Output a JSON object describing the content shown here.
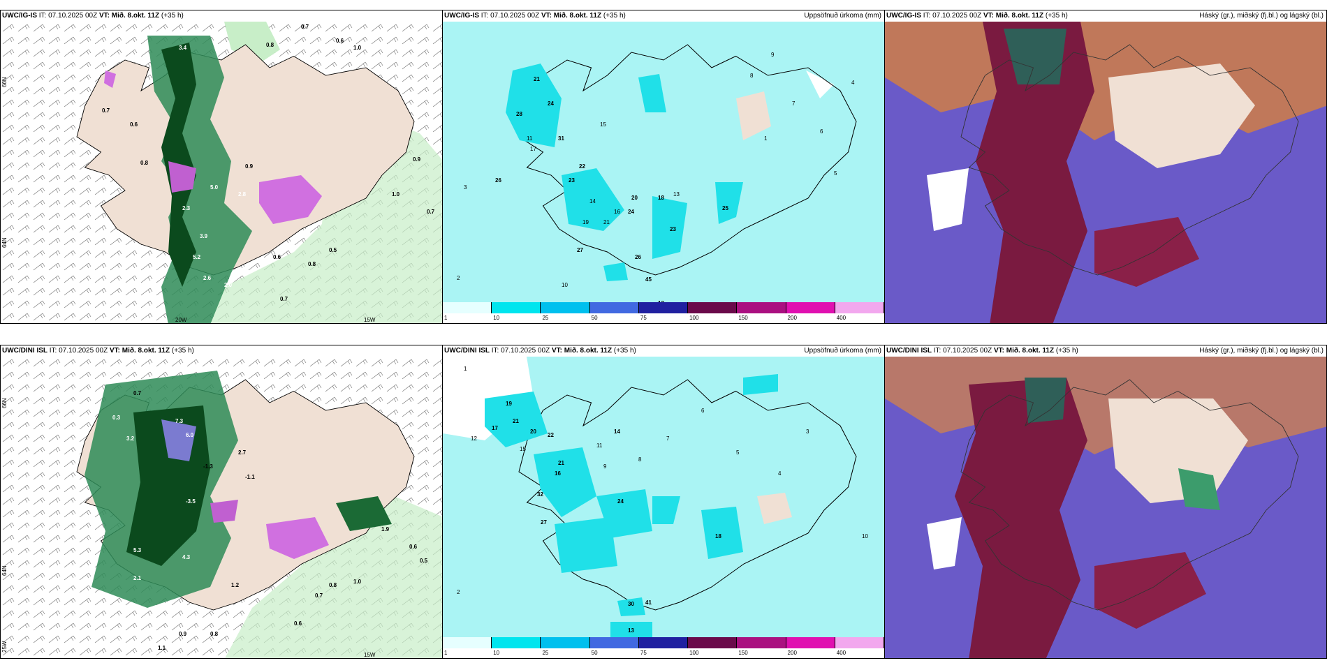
{
  "panels": {
    "p1": {
      "model": "UWC/IG-IS",
      "it": "IT: 07.10.2025 00Z",
      "vt": "VT: Mið. 8.okt. 11Z",
      "lead": "(+35 h)",
      "right": ""
    },
    "p2": {
      "model": "UWC/IG-IS",
      "it": "IT: 07.10.2025 00Z",
      "vt": "VT: Mið. 8.okt. 11Z",
      "lead": "(+35 h)",
      "right": "Uppsöfnuð úrkoma (mm)"
    },
    "p3": {
      "model": "UWC/IG-IS",
      "it": "IT: 07.10.2025 00Z",
      "vt": "VT: Mið. 8.okt. 11Z",
      "lead": "(+35 h)",
      "right": "Háský (gr.), miðský (fj.bl.) og lágský (bl.)"
    },
    "p4": {
      "model": "UWC/DINI ISL",
      "it": "IT: 07.10.2025 00Z",
      "vt": "VT: Mið. 8.okt. 11Z",
      "lead": "(+35 h)",
      "right": ""
    },
    "p5": {
      "model": "UWC/DINI ISL",
      "it": "IT: 07.10.2025 00Z",
      "vt": "VT: Mið. 8.okt. 11Z",
      "lead": "(+35 h)",
      "right": "Uppsöfnuð úrkoma (mm)"
    },
    "p6": {
      "model": "UWC/DINI ISL",
      "it": "IT: 07.10.2025 00Z",
      "vt": "VT: Mið. 8.okt. 11Z",
      "lead": "(+35 h)",
      "right": "Háský (gr.), miðský (fj.bl.) og lágský (bl.)"
    }
  },
  "grid_labels": {
    "lat66": "66N",
    "lat64": "64N",
    "lon20": "20W",
    "lon15": "15W",
    "lon25": "25W"
  },
  "colorbar": {
    "ticks": [
      "1",
      "10",
      "25",
      "50",
      "75",
      "100",
      "150",
      "200",
      "400"
    ],
    "colors": [
      "#e6ffff",
      "#00e5ee",
      "#00c0ee",
      "#4169e1",
      "#2020a0",
      "#6a0a4a",
      "#aa1080",
      "#e010b0",
      "#f2a8ee"
    ]
  },
  "wind_values": {
    "top": [
      "3.4",
      "0.8",
      "0.7",
      "0.6",
      "1.0",
      "0.7",
      "0.6",
      "0.8",
      "0.9",
      "2.8",
      "5.0",
      "3.9",
      "5.2",
      "2.3",
      "2.6",
      "0.6",
      "0.7",
      "0.8",
      "0.5",
      "0.9",
      "2.0",
      "0.7",
      "1.0"
    ],
    "bottom": [
      "0.7",
      "0.3",
      "7.3",
      "6.0",
      "2.7",
      "-1.3",
      "-1.1",
      "-3.5",
      "4.3",
      "1.9",
      "0.6",
      "0.5",
      "0.8",
      "1.0",
      "0.7",
      "0.6",
      "3.2",
      "5.3",
      "2.1",
      "0.9",
      "1.1",
      "1.2",
      "0.8"
    ]
  },
  "precip_values": {
    "top": [
      "21",
      "24",
      "28",
      "31",
      "11",
      "17",
      "15",
      "26",
      "22",
      "23",
      "14",
      "16",
      "19",
      "21",
      "24",
      "23",
      "13",
      "26",
      "25",
      "27",
      "45",
      "12",
      "20",
      "18",
      "9",
      "8",
      "7",
      "6",
      "5",
      "4",
      "3",
      "2",
      "1",
      "10"
    ],
    "bottom": [
      "19",
      "21",
      "17",
      "12",
      "20",
      "22",
      "15",
      "32",
      "16",
      "27",
      "24",
      "21",
      "41",
      "30",
      "13",
      "18",
      "11",
      "9",
      "8",
      "7",
      "6",
      "5",
      "4",
      "3",
      "2",
      "1",
      "10",
      "14"
    ]
  }
}
